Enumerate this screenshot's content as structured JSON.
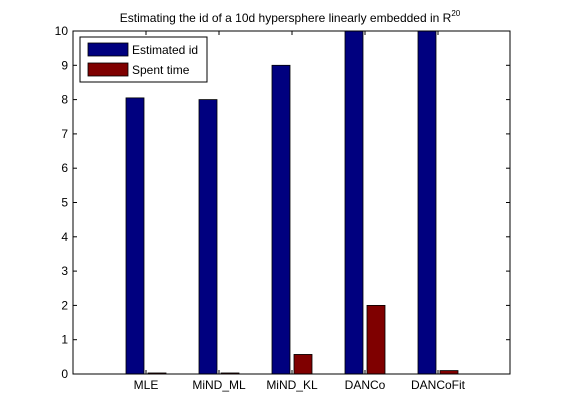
{
  "chart_data": {
    "type": "bar",
    "title": "Estimating the id of a 10d hypersphere linearly embedded in R",
    "title_superscript": "20",
    "xlabel": "",
    "ylabel": "",
    "categories": [
      "MLE",
      "MiND_ML",
      "MiND_KL",
      "DANCo",
      "DANCoFit"
    ],
    "series": [
      {
        "name": "Estimated id",
        "color": "#00007f",
        "values": [
          8.05,
          8.0,
          9.0,
          10.0,
          10.0
        ]
      },
      {
        "name": "Spent time",
        "color": "#7f0000",
        "values": [
          0.03,
          0.03,
          0.57,
          2.0,
          0.1
        ]
      }
    ],
    "ylim": [
      0,
      10
    ],
    "yticks": [
      0,
      1,
      2,
      3,
      4,
      5,
      6,
      7,
      8,
      9,
      10
    ],
    "grid": false,
    "legend_position": "top-left"
  }
}
